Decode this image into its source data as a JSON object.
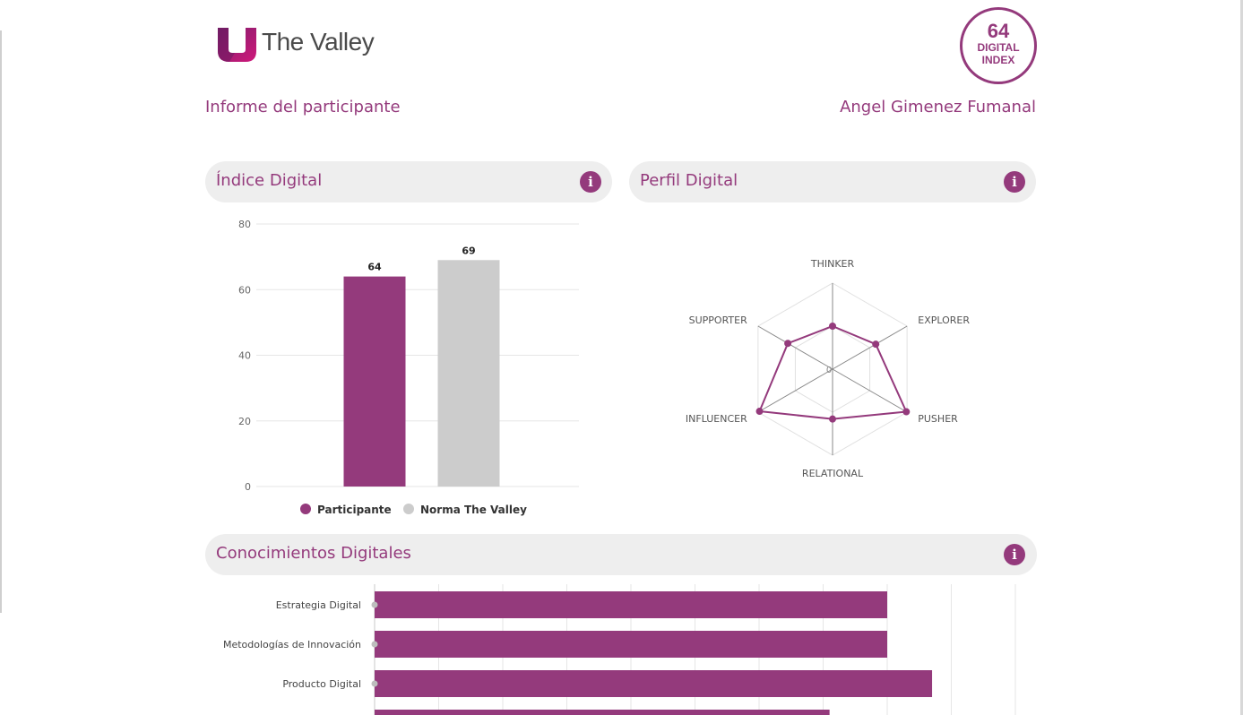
{
  "header": {
    "logo_text": "The Valley",
    "badge_value": "64",
    "badge_line1": "DIGITAL",
    "badge_line2": "INDEX",
    "report_label": "Informe del participante",
    "participant_name": "Angel Gimenez Fumanal"
  },
  "sections": {
    "indice": "Índice Digital",
    "perfil": "Perfil Digital",
    "conocimientos": "Conocimientos Digitales"
  },
  "colors": {
    "accent": "#943a7c",
    "norm": "#cccccc"
  },
  "chart_data": [
    {
      "type": "bar",
      "title": "",
      "categories": [
        "Participante",
        "Norma The Valley"
      ],
      "values": [
        64,
        69
      ],
      "ylim": [
        0,
        80
      ],
      "yticks": [
        0,
        20,
        40,
        60,
        80
      ],
      "legend": [
        "Participante",
        "Norma The Valley"
      ],
      "legend_position": "bottom",
      "grid": true
    },
    {
      "type": "radar",
      "axes": [
        "THINKER",
        "EXPLORER",
        "PUSHER",
        "RELATIONAL",
        "INFLUENCER",
        "SUPPORTER"
      ],
      "values": [
        0.5,
        0.58,
        0.99,
        0.58,
        0.98,
        0.6
      ],
      "center_label": "0",
      "grid": true
    },
    {
      "type": "bar",
      "orientation": "horizontal",
      "categories": [
        "Estrategia Digital",
        "Metodologías de Innovación",
        "Producto Digital",
        ""
      ],
      "values": [
        8,
        8,
        8.7,
        7.1
      ],
      "xlim": [
        0,
        10
      ],
      "grid": true
    }
  ]
}
